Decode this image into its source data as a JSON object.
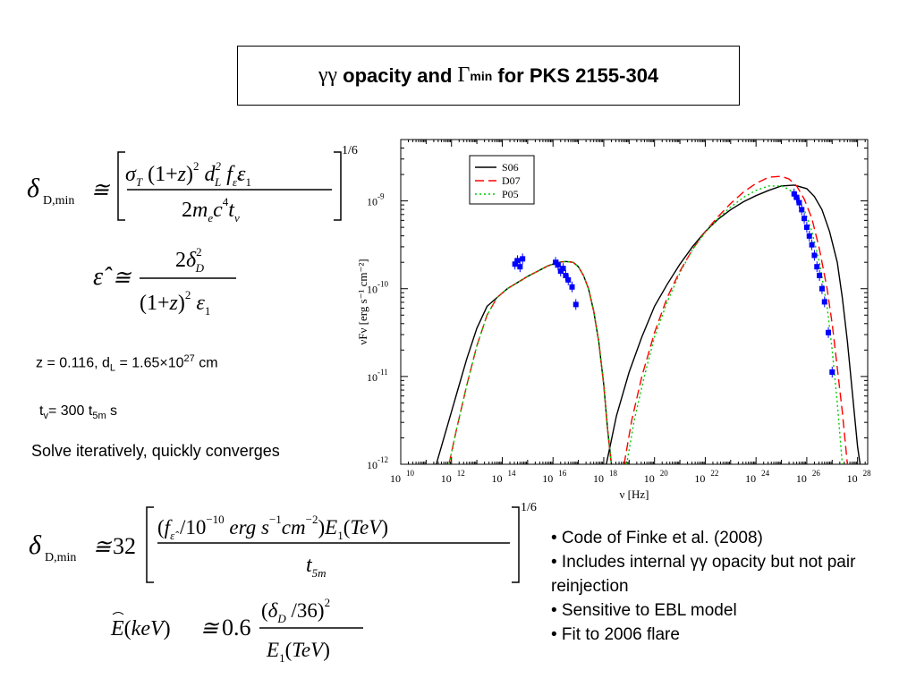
{
  "title": {
    "prefix": "γγ",
    "middle": " opacity and ",
    "gamma": "Γ",
    "gamma_sub": "min",
    "suffix": " for PKS 2155-304"
  },
  "equations": {
    "eq1": {
      "lhs": "δ",
      "lhs_sub": "D,min",
      "rel": "≅",
      "numerator": "σT(1+z)² dL² fε̂ ε1",
      "denominator": "2me c⁴ tv",
      "power": "1/6"
    },
    "eq2": {
      "lhs": "ε̂",
      "rel": "≅",
      "numerator": "2δD²",
      "denominator": "(1+z)² ε1"
    },
    "eq3": {
      "lhs": "δ",
      "lhs_sub": "D,min",
      "rel": "≅",
      "coef": "32",
      "numerator": "(fε̂ /10⁻¹⁰ erg s⁻¹cm⁻²)E1(TeV)",
      "denominator": "t5m",
      "power": "1/6"
    },
    "eq4": {
      "lhs": "E(keV)",
      "rel": "≅",
      "coef": "0.6",
      "numerator": "(δD /36)²",
      "denominator": "E1(TeV)"
    }
  },
  "params": {
    "z_text": "z = 0.116, d",
    "dl_sub": "L",
    "dl_value": " = 1.65×10",
    "dl_exp": "27",
    "dl_unit": " cm",
    "tv_text": "t",
    "tv_sub": "v",
    "tv_value": "= 300 t",
    "t5m_sub": "5m",
    "tv_unit": " s",
    "solve": "Solve iteratively, quickly converges"
  },
  "bullets": [
    "• Code of Finke et al. (2008)",
    "• Includes internal γγ opacity but not pair reinjection",
    "• Sensitive to EBL model",
    "• Fit to 2006 flare"
  ],
  "chart_data": {
    "type": "line",
    "xlabel": "ν [Hz]",
    "ylabel": "νFν [erg s⁻¹ cm⁻²]",
    "xscale": "log",
    "yscale": "log",
    "xlim": [
      10000000000.0,
      1e+28
    ],
    "ylim": [
      1e-12,
      5e-09
    ],
    "x_ticks": [
      "10^10",
      "10^12",
      "10^14",
      "10^16",
      "10^18",
      "10^20",
      "10^22",
      "10^24",
      "10^26",
      "10^28"
    ],
    "y_ticks": [
      "10^-12",
      "10^-11",
      "10^-10",
      "10^-9"
    ],
    "legend_position": "top-left",
    "series": [
      {
        "name": "S06",
        "color": "#000000",
        "style": "solid",
        "x": [
          11.4,
          11.8,
          12.2,
          12.6,
          13.0,
          13.4,
          13.8,
          14.2,
          14.6,
          15.0,
          15.4,
          15.8,
          16.2,
          16.5,
          16.8,
          17.0,
          17.2,
          17.4,
          17.6,
          17.8,
          18.0,
          18.15,
          18.3
        ],
        "y": [
          -12.0,
          -11.6,
          -11.2,
          -10.8,
          -10.45,
          -10.2,
          -10.1,
          -10.0,
          -9.93,
          -9.86,
          -9.8,
          -9.74,
          -9.7,
          -9.69,
          -9.7,
          -9.75,
          -9.85,
          -10.0,
          -10.25,
          -10.6,
          -11.1,
          -11.6,
          -12.0
        ],
        "x2": [
          18.1,
          18.5,
          19.0,
          19.5,
          20.0,
          20.5,
          21.0,
          21.5,
          22.0,
          22.5,
          23.0,
          23.5,
          24.0,
          24.5,
          25.0,
          25.5,
          26.0,
          26.3,
          26.6,
          26.9,
          27.2,
          27.4,
          27.6,
          27.8,
          28.0,
          28.1
        ],
        "y2": [
          -12.0,
          -11.45,
          -10.95,
          -10.55,
          -10.2,
          -9.95,
          -9.72,
          -9.52,
          -9.35,
          -9.21,
          -9.1,
          -9.01,
          -8.94,
          -8.88,
          -8.83,
          -8.82,
          -8.86,
          -8.95,
          -9.1,
          -9.35,
          -9.7,
          -10.1,
          -10.6,
          -11.2,
          -11.8,
          -12.0
        ]
      },
      {
        "name": "D07",
        "color": "#ff0000",
        "style": "dashed",
        "x": [
          11.9,
          12.2,
          12.6,
          13.0,
          13.4,
          13.8,
          14.2,
          14.6,
          15.0,
          15.4,
          15.8,
          16.2,
          16.5,
          16.8,
          17.0,
          17.2,
          17.4,
          17.6,
          17.8,
          18.0,
          18.15,
          18.3
        ],
        "y": [
          -12.0,
          -11.6,
          -11.1,
          -10.65,
          -10.3,
          -10.1,
          -10.0,
          -9.93,
          -9.86,
          -9.8,
          -9.74,
          -9.7,
          -9.69,
          -9.7,
          -9.75,
          -9.85,
          -10.0,
          -10.25,
          -10.6,
          -11.1,
          -11.6,
          -12.0
        ],
        "x2": [
          18.8,
          19.1,
          19.5,
          20.0,
          20.5,
          21.0,
          21.5,
          22.0,
          22.5,
          23.0,
          23.5,
          24.0,
          24.5,
          25.0,
          25.3,
          25.6,
          25.9,
          26.2,
          26.5,
          26.8,
          27.0,
          27.2,
          27.4,
          27.6
        ],
        "y2": [
          -12.0,
          -11.5,
          -11.0,
          -10.5,
          -10.1,
          -9.8,
          -9.55,
          -9.35,
          -9.18,
          -9.03,
          -8.9,
          -8.8,
          -8.73,
          -8.72,
          -8.75,
          -8.83,
          -8.98,
          -9.2,
          -9.55,
          -10.0,
          -10.4,
          -10.9,
          -11.4,
          -12.0
        ]
      },
      {
        "name": "P05",
        "color": "#00cc00",
        "style": "dotted",
        "x": [
          11.9,
          12.2,
          12.6,
          13.0,
          13.4,
          13.8,
          14.2,
          14.6,
          15.0,
          15.4,
          15.8,
          16.2,
          16.5,
          16.8,
          17.0,
          17.2,
          17.4,
          17.6,
          17.8,
          18.0,
          18.15,
          18.3
        ],
        "y": [
          -12.0,
          -11.6,
          -11.1,
          -10.65,
          -10.3,
          -10.1,
          -10.0,
          -9.93,
          -9.86,
          -9.8,
          -9.74,
          -9.7,
          -9.69,
          -9.7,
          -9.75,
          -9.85,
          -10.0,
          -10.25,
          -10.6,
          -11.1,
          -11.6,
          -12.0
        ],
        "x2": [
          18.9,
          19.2,
          19.6,
          20.0,
          20.5,
          21.0,
          21.5,
          22.0,
          22.5,
          23.0,
          23.5,
          24.0,
          24.5,
          25.0,
          25.3,
          25.6,
          25.9,
          26.2,
          26.5,
          26.8,
          27.0,
          27.2,
          27.4
        ],
        "y2": [
          -12.0,
          -11.5,
          -11.0,
          -10.55,
          -10.15,
          -9.82,
          -9.55,
          -9.36,
          -9.2,
          -9.07,
          -8.96,
          -8.88,
          -8.83,
          -8.83,
          -8.87,
          -8.95,
          -9.1,
          -9.35,
          -9.7,
          -10.2,
          -10.7,
          -11.3,
          -12.0
        ]
      }
    ],
    "data_points": {
      "color": "#0000ff",
      "x": [
        14.5,
        14.6,
        14.7,
        14.8,
        16.1,
        16.2,
        16.3,
        16.4,
        16.5,
        16.6,
        16.75,
        16.9,
        25.5,
        25.6,
        25.7,
        25.8,
        25.9,
        26.0,
        26.1,
        26.2,
        26.3,
        26.4,
        26.5,
        26.6,
        26.7,
        26.85,
        27.0
      ],
      "y": [
        -9.72,
        -9.68,
        -9.75,
        -9.66,
        -9.7,
        -9.73,
        -9.8,
        -9.77,
        -9.85,
        -9.9,
        -9.98,
        -10.18,
        -8.92,
        -8.96,
        -9.02,
        -9.1,
        -9.2,
        -9.3,
        -9.4,
        -9.5,
        -9.62,
        -9.75,
        -9.85,
        -10.0,
        -10.15,
        -10.5,
        -10.95
      ]
    }
  }
}
